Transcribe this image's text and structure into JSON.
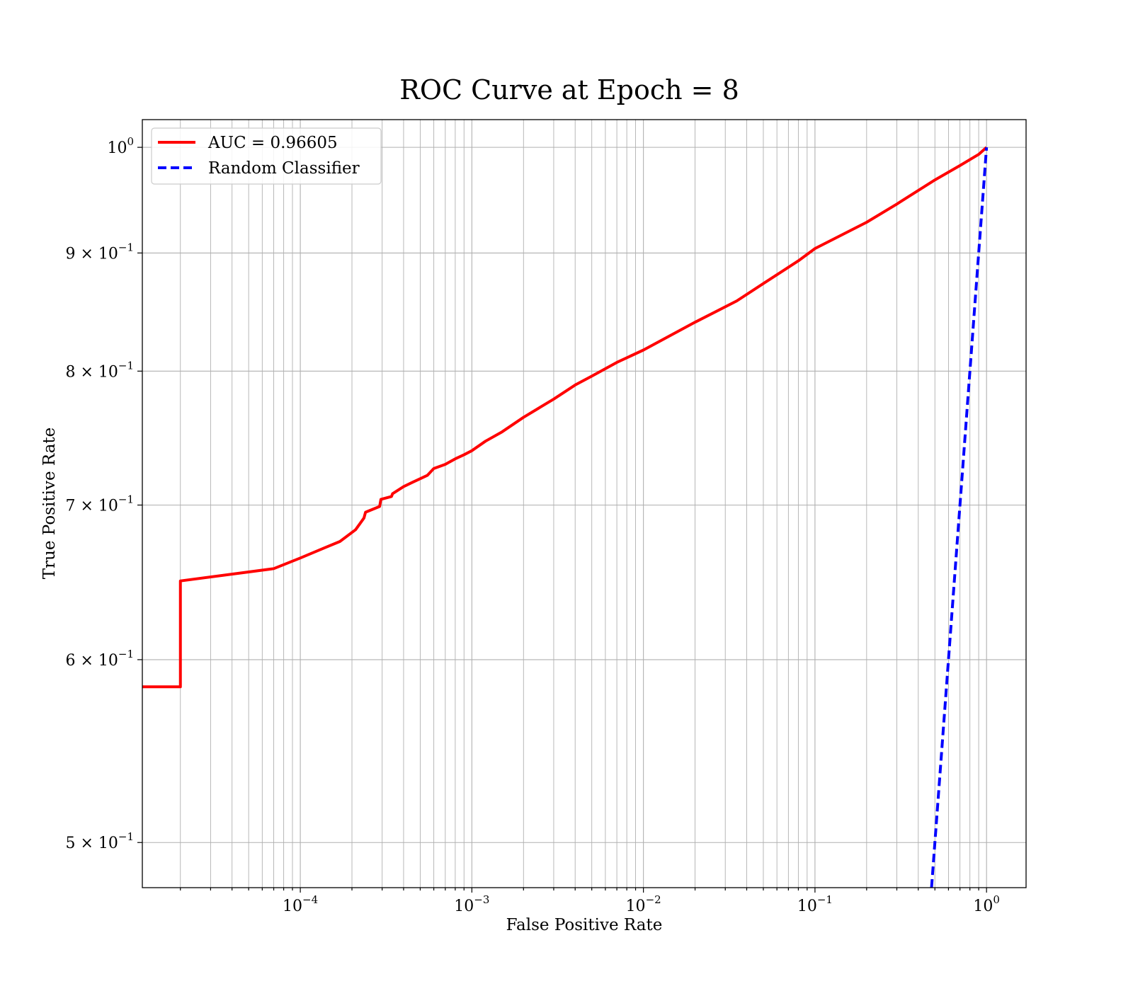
{
  "chart_data": {
    "type": "line",
    "title": "ROC Curve at Epoch = 8",
    "xlabel": "False Positive Rate",
    "ylabel": "True Positive Rate",
    "xscale": "log",
    "yscale": "log",
    "xlim": [
      1.2e-05,
      1.7
    ],
    "ylim": [
      0.478,
      1.028
    ],
    "grid": "both-major-and-minor",
    "legend_position": "top-left",
    "x_ticks": [
      {
        "value": 0.0001,
        "base": "10",
        "exp": "−4"
      },
      {
        "value": 0.001,
        "base": "10",
        "exp": "−3"
      },
      {
        "value": 0.01,
        "base": "10",
        "exp": "−2"
      },
      {
        "value": 0.1,
        "base": "10",
        "exp": "−1"
      },
      {
        "value": 1,
        "base": "10",
        "exp": "0"
      }
    ],
    "y_ticks": [
      {
        "value": 0.5,
        "base": "5 × 10",
        "exp": "−1"
      },
      {
        "value": 0.6,
        "base": "6 × 10",
        "exp": "−1"
      },
      {
        "value": 0.7,
        "base": "7 × 10",
        "exp": "−1"
      },
      {
        "value": 0.8,
        "base": "8 × 10",
        "exp": "−1"
      },
      {
        "value": 0.9,
        "base": "9 × 10",
        "exp": "−1"
      },
      {
        "value": 1.0,
        "base": "10",
        "exp": "0"
      }
    ],
    "series": [
      {
        "name": "AUC = 0.96605",
        "color": "#ff0000",
        "style": "solid",
        "x": [
          1.2e-05,
          2e-05,
          2e-05,
          7e-05,
          0.0001,
          0.00014,
          0.00017,
          0.00021,
          0.000235,
          0.00024,
          0.00029,
          0.000295,
          0.00034,
          0.000345,
          0.0004,
          0.00045,
          0.00055,
          0.0006,
          0.0007,
          0.0008,
          0.0009,
          0.001,
          0.0012,
          0.0015,
          0.002,
          0.003,
          0.004,
          0.005,
          0.007,
          0.01,
          0.02,
          0.035,
          0.05,
          0.08,
          0.1,
          0.2,
          0.3,
          0.5,
          0.7,
          0.9,
          1.0
        ],
        "y": [
          0.584,
          0.584,
          0.649,
          0.657,
          0.664,
          0.671,
          0.675,
          0.683,
          0.691,
          0.695,
          0.699,
          0.704,
          0.706,
          0.708,
          0.713,
          0.716,
          0.721,
          0.726,
          0.729,
          0.733,
          0.736,
          0.739,
          0.746,
          0.753,
          0.764,
          0.778,
          0.789,
          0.796,
          0.807,
          0.817,
          0.84,
          0.858,
          0.873,
          0.893,
          0.904,
          0.928,
          0.945,
          0.968,
          0.982,
          0.993,
          1.0
        ]
      },
      {
        "name": "Random Classifier",
        "color": "#0000ff",
        "style": "dashed",
        "x": [
          0.478,
          1.0
        ],
        "y": [
          0.478,
          1.0
        ]
      }
    ]
  }
}
